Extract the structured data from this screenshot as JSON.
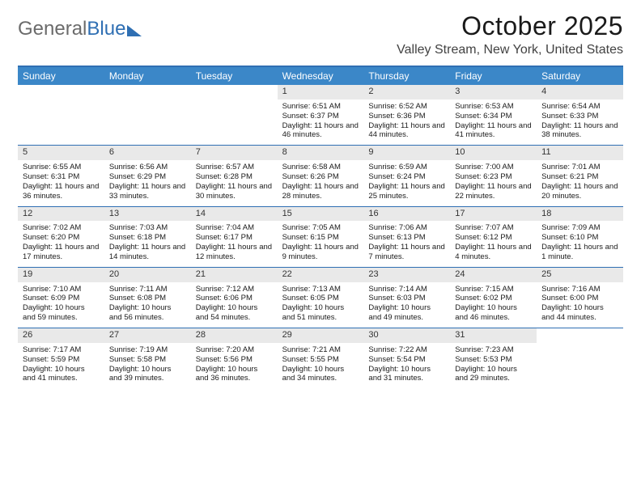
{
  "logo": {
    "part1": "General",
    "part2": "Blue"
  },
  "title": "October 2025",
  "subtitle": "Valley Stream, New York, United States",
  "colors": {
    "header_bg": "#3b87c8",
    "rule": "#2f6fb3",
    "daynum_bg": "#e9e9e9",
    "text": "#1a1a1a",
    "logo_gray": "#6b6b6b",
    "logo_blue": "#2f6fb3"
  },
  "typography": {
    "title_fontsize": 32,
    "subtitle_fontsize": 16,
    "dayhead_fontsize": 12,
    "cell_fontsize": 9.5
  },
  "day_names": [
    "Sunday",
    "Monday",
    "Tuesday",
    "Wednesday",
    "Thursday",
    "Friday",
    "Saturday"
  ],
  "weeks": [
    [
      null,
      null,
      null,
      {
        "n": "1",
        "sr": "6:51 AM",
        "ss": "6:37 PM",
        "dl": "11 hours and 46 minutes."
      },
      {
        "n": "2",
        "sr": "6:52 AM",
        "ss": "6:36 PM",
        "dl": "11 hours and 44 minutes."
      },
      {
        "n": "3",
        "sr": "6:53 AM",
        "ss": "6:34 PM",
        "dl": "11 hours and 41 minutes."
      },
      {
        "n": "4",
        "sr": "6:54 AM",
        "ss": "6:33 PM",
        "dl": "11 hours and 38 minutes."
      }
    ],
    [
      {
        "n": "5",
        "sr": "6:55 AM",
        "ss": "6:31 PM",
        "dl": "11 hours and 36 minutes."
      },
      {
        "n": "6",
        "sr": "6:56 AM",
        "ss": "6:29 PM",
        "dl": "11 hours and 33 minutes."
      },
      {
        "n": "7",
        "sr": "6:57 AM",
        "ss": "6:28 PM",
        "dl": "11 hours and 30 minutes."
      },
      {
        "n": "8",
        "sr": "6:58 AM",
        "ss": "6:26 PM",
        "dl": "11 hours and 28 minutes."
      },
      {
        "n": "9",
        "sr": "6:59 AM",
        "ss": "6:24 PM",
        "dl": "11 hours and 25 minutes."
      },
      {
        "n": "10",
        "sr": "7:00 AM",
        "ss": "6:23 PM",
        "dl": "11 hours and 22 minutes."
      },
      {
        "n": "11",
        "sr": "7:01 AM",
        "ss": "6:21 PM",
        "dl": "11 hours and 20 minutes."
      }
    ],
    [
      {
        "n": "12",
        "sr": "7:02 AM",
        "ss": "6:20 PM",
        "dl": "11 hours and 17 minutes."
      },
      {
        "n": "13",
        "sr": "7:03 AM",
        "ss": "6:18 PM",
        "dl": "11 hours and 14 minutes."
      },
      {
        "n": "14",
        "sr": "7:04 AM",
        "ss": "6:17 PM",
        "dl": "11 hours and 12 minutes."
      },
      {
        "n": "15",
        "sr": "7:05 AM",
        "ss": "6:15 PM",
        "dl": "11 hours and 9 minutes."
      },
      {
        "n": "16",
        "sr": "7:06 AM",
        "ss": "6:13 PM",
        "dl": "11 hours and 7 minutes."
      },
      {
        "n": "17",
        "sr": "7:07 AM",
        "ss": "6:12 PM",
        "dl": "11 hours and 4 minutes."
      },
      {
        "n": "18",
        "sr": "7:09 AM",
        "ss": "6:10 PM",
        "dl": "11 hours and 1 minute."
      }
    ],
    [
      {
        "n": "19",
        "sr": "7:10 AM",
        "ss": "6:09 PM",
        "dl": "10 hours and 59 minutes."
      },
      {
        "n": "20",
        "sr": "7:11 AM",
        "ss": "6:08 PM",
        "dl": "10 hours and 56 minutes."
      },
      {
        "n": "21",
        "sr": "7:12 AM",
        "ss": "6:06 PM",
        "dl": "10 hours and 54 minutes."
      },
      {
        "n": "22",
        "sr": "7:13 AM",
        "ss": "6:05 PM",
        "dl": "10 hours and 51 minutes."
      },
      {
        "n": "23",
        "sr": "7:14 AM",
        "ss": "6:03 PM",
        "dl": "10 hours and 49 minutes."
      },
      {
        "n": "24",
        "sr": "7:15 AM",
        "ss": "6:02 PM",
        "dl": "10 hours and 46 minutes."
      },
      {
        "n": "25",
        "sr": "7:16 AM",
        "ss": "6:00 PM",
        "dl": "10 hours and 44 minutes."
      }
    ],
    [
      {
        "n": "26",
        "sr": "7:17 AM",
        "ss": "5:59 PM",
        "dl": "10 hours and 41 minutes."
      },
      {
        "n": "27",
        "sr": "7:19 AM",
        "ss": "5:58 PM",
        "dl": "10 hours and 39 minutes."
      },
      {
        "n": "28",
        "sr": "7:20 AM",
        "ss": "5:56 PM",
        "dl": "10 hours and 36 minutes."
      },
      {
        "n": "29",
        "sr": "7:21 AM",
        "ss": "5:55 PM",
        "dl": "10 hours and 34 minutes."
      },
      {
        "n": "30",
        "sr": "7:22 AM",
        "ss": "5:54 PM",
        "dl": "10 hours and 31 minutes."
      },
      {
        "n": "31",
        "sr": "7:23 AM",
        "ss": "5:53 PM",
        "dl": "10 hours and 29 minutes."
      },
      null
    ]
  ],
  "labels": {
    "sunrise": "Sunrise:",
    "sunset": "Sunset:",
    "daylight": "Daylight:"
  }
}
